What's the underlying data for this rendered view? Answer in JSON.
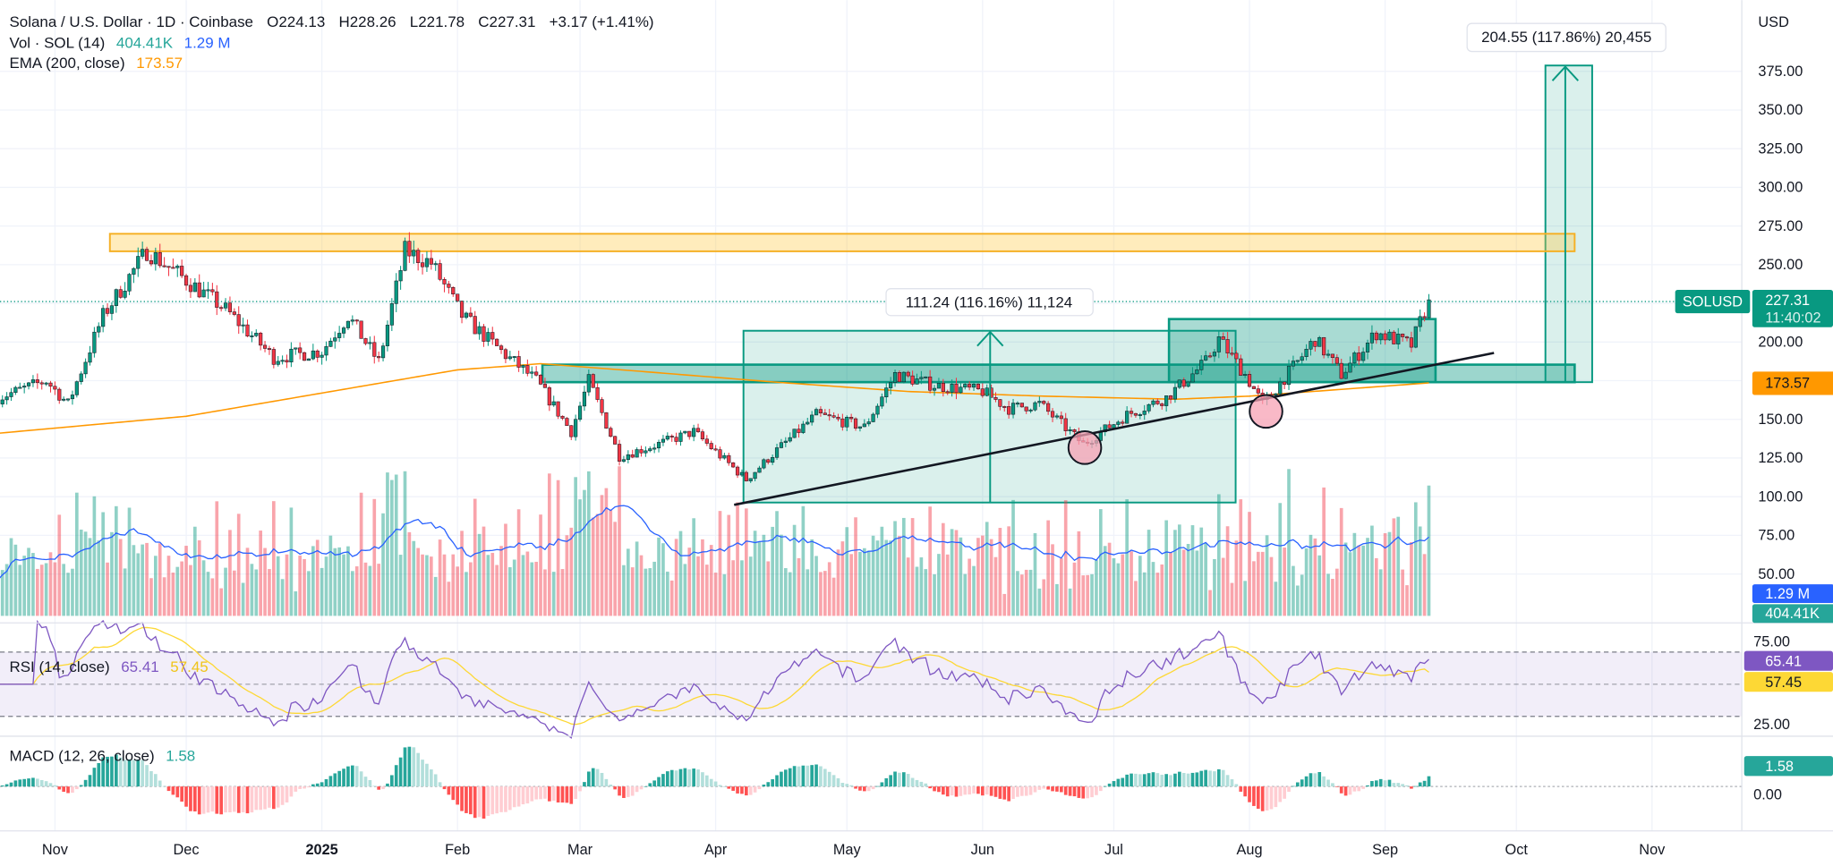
{
  "header": {
    "title": "Solana / U.S. Dollar · 1D · Coinbase",
    "open": "O224.13",
    "high": "H228.26",
    "low": "L221.78",
    "close": "C227.31",
    "change": "+3.17 (+1.41%)",
    "vol_label": "Vol · SOL (14)",
    "vol_value": "404.41K",
    "vol_ma_value": "1.29 M",
    "ema_label": "EMA (200, close)",
    "ema_value": "173.57"
  },
  "price_axis": {
    "currency": "USD",
    "labels": [
      "375.00",
      "350.00",
      "325.00",
      "300.00",
      "275.00",
      "250.00",
      "200.00",
      "150.00",
      "125.00",
      "100.00",
      "75.00",
      "50.00"
    ],
    "symbol_badge": "SOLUSD",
    "last_price": "227.31",
    "countdown": "11:40:02",
    "ema_badge": "173.57",
    "vol_ma_badge": "1.29 M",
    "vol_badge": "404.41K"
  },
  "rsi": {
    "label": "RSI (14, close)",
    "value": "65.41",
    "ma_value": "57.45",
    "axis_labels": [
      "75.00",
      "25.00"
    ]
  },
  "macd": {
    "label": "MACD (12, 26, close)",
    "value": "1.58",
    "axis_zero": "0.00"
  },
  "drawings": {
    "measure_1": "111.24 (116.16%) 11,124",
    "measure_2": "204.55 (117.86%) 20,455"
  },
  "time_axis": [
    {
      "label": "Nov",
      "date": "2024-11-01",
      "bold": false
    },
    {
      "label": "Dec",
      "date": "2024-12-01",
      "bold": false
    },
    {
      "label": "2025",
      "date": "2025-01-01",
      "bold": true
    },
    {
      "label": "Feb",
      "date": "2025-02-01",
      "bold": false
    },
    {
      "label": "Mar",
      "date": "2025-03-01",
      "bold": false
    },
    {
      "label": "Apr",
      "date": "2025-04-01",
      "bold": false
    },
    {
      "label": "May",
      "date": "2025-05-01",
      "bold": false
    },
    {
      "label": "Jun",
      "date": "2025-06-01",
      "bold": false
    },
    {
      "label": "Jul",
      "date": "2025-07-01",
      "bold": false
    },
    {
      "label": "Aug",
      "date": "2025-08-01",
      "bold": false
    },
    {
      "label": "Sep",
      "date": "2025-09-01",
      "bold": false
    },
    {
      "label": "Oct",
      "date": "2025-10-01",
      "bold": false
    },
    {
      "label": "Nov",
      "date": "2025-11-01",
      "bold": false
    }
  ],
  "colors": {
    "up": "#089981",
    "down": "#f23645",
    "ema": "#ff9800",
    "vol_ma": "#2962ff",
    "rsi": "#7e57c2",
    "rsi_ma": "#fdd835",
    "zone_resistance": "#f5b025",
    "zone_support": "#089981"
  },
  "chart_data": {
    "type": "candlestick",
    "timeframe": "1D",
    "y_range": [
      25,
      390
    ],
    "approx_close_path": [
      [
        "2024-10-19",
        164
      ],
      [
        "2024-10-30",
        175
      ],
      [
        "2024-11-04",
        160
      ],
      [
        "2024-11-12",
        217
      ],
      [
        "2024-11-22",
        259
      ],
      [
        "2024-12-01",
        240
      ],
      [
        "2024-12-10",
        221
      ],
      [
        "2024-12-21",
        190
      ],
      [
        "2025-01-01",
        194
      ],
      [
        "2025-01-07",
        217
      ],
      [
        "2025-01-14",
        187
      ],
      [
        "2025-01-20",
        259
      ],
      [
        "2025-01-26",
        251
      ],
      [
        "2025-02-02",
        217
      ],
      [
        "2025-02-11",
        194
      ],
      [
        "2025-02-19",
        175
      ],
      [
        "2025-02-27",
        142
      ],
      [
        "2025-03-03",
        175
      ],
      [
        "2025-03-10",
        126
      ],
      [
        "2025-03-19",
        134
      ],
      [
        "2025-03-27",
        142
      ],
      [
        "2025-04-08",
        111
      ],
      [
        "2025-04-15",
        130
      ],
      [
        "2025-04-24",
        153
      ],
      [
        "2025-05-05",
        145
      ],
      [
        "2025-05-12",
        179
      ],
      [
        "2025-05-21",
        172
      ],
      [
        "2025-06-01",
        168
      ],
      [
        "2025-06-07",
        157
      ],
      [
        "2025-06-14",
        160
      ],
      [
        "2025-06-24",
        134
      ],
      [
        "2025-07-04",
        153
      ],
      [
        "2025-07-13",
        164
      ],
      [
        "2025-07-22",
        187
      ],
      [
        "2025-07-25",
        202
      ],
      [
        "2025-07-31",
        179
      ],
      [
        "2025-08-04",
        160
      ],
      [
        "2025-08-12",
        187
      ],
      [
        "2025-08-16",
        202
      ],
      [
        "2025-08-22",
        179
      ],
      [
        "2025-08-30",
        206
      ],
      [
        "2025-09-07",
        198
      ],
      [
        "2025-09-11",
        227.31
      ]
    ],
    "ema200_path": [
      [
        "2024-10-19",
        141
      ],
      [
        "2024-12-01",
        152
      ],
      [
        "2025-01-01",
        167
      ],
      [
        "2025-02-01",
        182
      ],
      [
        "2025-02-20",
        186
      ],
      [
        "2025-03-15",
        181
      ],
      [
        "2025-04-15",
        174
      ],
      [
        "2025-05-15",
        168
      ],
      [
        "2025-06-15",
        165
      ],
      [
        "2025-07-15",
        163
      ],
      [
        "2025-08-01",
        165
      ],
      [
        "2025-09-11",
        173.57
      ]
    ],
    "zones": [
      {
        "name": "resistance",
        "from": 259,
        "to": 270
      },
      {
        "name": "support",
        "from": 174,
        "to": 185
      }
    ],
    "measures": [
      {
        "from_price": 96,
        "to_price": 207,
        "start": "2025-04-07",
        "end": "2025-07-08"
      },
      {
        "from_price": 174,
        "to_price": 378,
        "start": "2025-10-07",
        "end": "2025-10-18"
      }
    ],
    "trendline": [
      [
        "2025-04-05",
        97
      ],
      [
        "2025-09-26",
        195
      ]
    ],
    "rsi_levels": [
      70,
      50,
      30
    ]
  }
}
